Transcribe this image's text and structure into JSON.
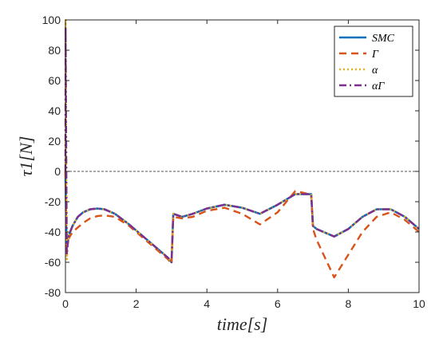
{
  "chart_data": {
    "type": "line",
    "title": "",
    "xlabel": "time[s]",
    "ylabel": "τ1[N]",
    "xlim": [
      0,
      10
    ],
    "ylim": [
      -80,
      100
    ],
    "xticks": [
      0,
      2,
      4,
      6,
      8,
      10
    ],
    "yticks": [
      -80,
      -60,
      -40,
      -20,
      0,
      20,
      40,
      60,
      80,
      100
    ],
    "xtick_labels": [
      "0",
      "2",
      "4",
      "6",
      "8",
      "10"
    ],
    "ytick_labels": [
      "-80",
      "-60",
      "-40",
      "-20",
      "0",
      "20",
      "40",
      "60",
      "80",
      "100"
    ],
    "grid": false,
    "legend_position": "top-right",
    "reference_line": {
      "y": 0,
      "style": "dashed",
      "color": "#555555"
    },
    "series": [
      {
        "name": "SMC",
        "color": "#0072BD",
        "dash": "solid",
        "x": [
          0,
          0.03,
          0.06,
          0.1,
          0.2,
          0.35,
          0.5,
          0.7,
          0.9,
          1.1,
          1.4,
          1.8,
          2.2,
          2.6,
          2.9,
          3.0,
          3.05,
          3.3,
          3.6,
          4.0,
          4.5,
          5.0,
          5.5,
          6.0,
          6.5,
          6.9,
          6.95,
          7.0,
          7.1,
          7.3,
          7.6,
          8.0,
          8.4,
          8.8,
          9.2,
          9.6,
          10.0
        ],
        "y": [
          0,
          -48,
          -46,
          -42,
          -36,
          -30,
          -27,
          -25,
          -24.5,
          -25,
          -28,
          -35,
          -43,
          -51,
          -57,
          -60,
          -28,
          -30,
          -28,
          -24.5,
          -22,
          -24,
          -28,
          -22,
          -15,
          -15,
          -15,
          -36,
          -38,
          -40,
          -43,
          -38,
          -30,
          -25,
          -25,
          -30,
          -38
        ]
      },
      {
        "name": "Γ",
        "color": "#D95319",
        "dash": "dashed",
        "x": [
          0,
          0.03,
          0.06,
          0.1,
          0.2,
          0.35,
          0.5,
          0.7,
          0.9,
          1.1,
          1.4,
          1.8,
          2.2,
          2.6,
          2.9,
          3.0,
          3.05,
          3.3,
          3.6,
          4.0,
          4.5,
          5.0,
          5.5,
          6.0,
          6.5,
          6.9,
          6.95,
          7.0,
          7.1,
          7.3,
          7.6,
          8.0,
          8.4,
          8.8,
          9.2,
          9.6,
          10.0
        ],
        "y": [
          0,
          -50,
          -47,
          -44,
          -40,
          -37,
          -34,
          -31,
          -29.5,
          -29,
          -30,
          -36,
          -44,
          -52,
          -58,
          -61,
          -30,
          -31,
          -30,
          -26,
          -24,
          -28,
          -35,
          -27,
          -13,
          -15,
          -15,
          -38,
          -45,
          -55,
          -70,
          -55,
          -40,
          -30,
          -27,
          -32,
          -40
        ]
      },
      {
        "name": "α",
        "color": "#EDB120",
        "dash": "dotted",
        "x": [
          0,
          0.005,
          0.02,
          0.04,
          0.06,
          0.1,
          0.2,
          0.35,
          0.5,
          0.7,
          0.9,
          1.1,
          1.4,
          1.8,
          2.2,
          2.6,
          2.9,
          3.0,
          3.05,
          3.3,
          3.6,
          4.0,
          4.5,
          5.0,
          5.5,
          6.0,
          6.5,
          6.9,
          6.95,
          7.0,
          7.1,
          7.3,
          7.6,
          8.0,
          8.4,
          8.8,
          9.2,
          9.6,
          10.0
        ],
        "y": [
          0,
          100,
          30,
          -58,
          -50,
          -42,
          -36,
          -30,
          -27,
          -25,
          -24.5,
          -25,
          -28,
          -35,
          -43,
          -51,
          -57,
          -60,
          -28,
          -30,
          -28,
          -24.5,
          -22,
          -24,
          -28,
          -22,
          -15,
          -15,
          -15,
          -36,
          -38,
          -40,
          -43,
          -38,
          -30,
          -25,
          -25,
          -30,
          -38
        ]
      },
      {
        "name": "αΓ",
        "color": "#7E2F8E",
        "dash": "dashdot",
        "x": [
          0,
          0.005,
          0.02,
          0.04,
          0.06,
          0.1,
          0.2,
          0.35,
          0.5,
          0.7,
          0.9,
          1.1,
          1.4,
          1.8,
          2.2,
          2.6,
          2.9,
          3.0,
          3.05,
          3.3,
          3.6,
          4.0,
          4.5,
          5.0,
          5.5,
          6.0,
          6.5,
          6.9,
          6.95,
          7.0,
          7.1,
          7.3,
          7.6,
          8.0,
          8.4,
          8.8,
          9.2,
          9.6,
          10.0
        ],
        "y": [
          0,
          95,
          20,
          -55,
          -49,
          -42,
          -36,
          -30,
          -27,
          -25,
          -24.5,
          -25,
          -28,
          -35,
          -43,
          -51,
          -57,
          -60,
          -28,
          -30,
          -28,
          -24.5,
          -22,
          -24,
          -28,
          -22,
          -15,
          -15,
          -15,
          -36,
          -38,
          -40,
          -43,
          -38,
          -30,
          -25,
          -25,
          -30,
          -38
        ]
      }
    ]
  }
}
